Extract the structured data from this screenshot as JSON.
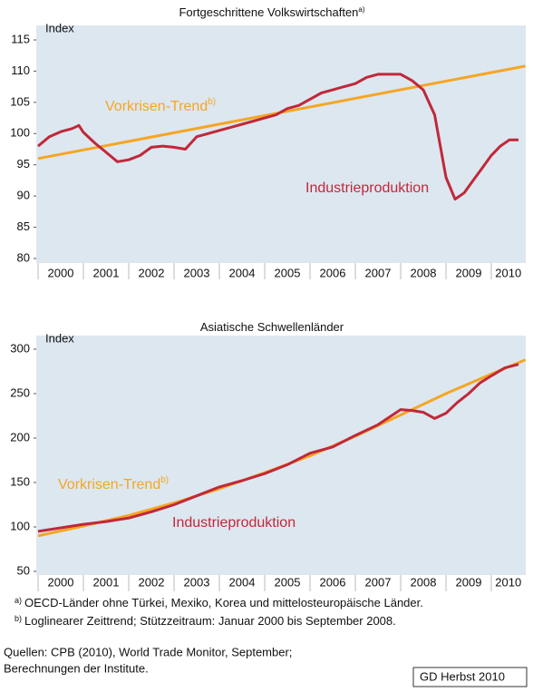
{
  "chart_data": [
    {
      "type": "line",
      "title": "Fortgeschrittene Volkswirtschaften",
      "title_note": "a)",
      "ylabel": "Index",
      "x_categories": [
        "2000",
        "2001",
        "2002",
        "2003",
        "2004",
        "2005",
        "2006",
        "2007",
        "2008",
        "2009",
        "2010"
      ],
      "xlim": [
        2000,
        2010.75
      ],
      "ylim": [
        80,
        115
      ],
      "yticks": [
        80,
        85,
        90,
        95,
        100,
        105,
        110,
        115
      ],
      "series": [
        {
          "name": "Vorkrisen-Trend",
          "name_note": "b)",
          "color": "#f5a623",
          "x": [
            2000,
            2010.75
          ],
          "values": [
            96,
            110.8
          ]
        },
        {
          "name": "Industrieproduktion",
          "color": "#c0283a",
          "x": [
            2000,
            2000.25,
            2000.5,
            2000.75,
            2000.9,
            2001,
            2001.25,
            2001.5,
            2001.75,
            2002,
            2002.25,
            2002.5,
            2002.75,
            2003,
            2003.25,
            2003.5,
            2003.75,
            2004,
            2004.25,
            2004.5,
            2004.75,
            2005,
            2005.25,
            2005.5,
            2005.75,
            2006,
            2006.25,
            2006.5,
            2006.75,
            2007,
            2007.25,
            2007.5,
            2007.75,
            2008,
            2008.25,
            2008.5,
            2008.75,
            2009,
            2009.2,
            2009.4,
            2009.6,
            2009.8,
            2010,
            2010.2,
            2010.4,
            2010.6
          ],
          "values": [
            98,
            99.5,
            100.3,
            100.8,
            101.3,
            100.2,
            98.5,
            97,
            95.5,
            95.8,
            96.5,
            97.8,
            98,
            97.8,
            97.5,
            99.5,
            100,
            100.5,
            101,
            101.5,
            102,
            102.5,
            103,
            104,
            104.5,
            105.5,
            106.5,
            107,
            107.5,
            108,
            109,
            109.5,
            109.5,
            109.5,
            108.5,
            107,
            103,
            93,
            89.5,
            90.5,
            92.5,
            94.5,
            96.5,
            98,
            99,
            99
          ]
        }
      ]
    },
    {
      "type": "line",
      "title": "Asiatische Schwellenländer",
      "ylabel": "Index",
      "x_categories": [
        "2000",
        "2001",
        "2002",
        "2003",
        "2004",
        "2005",
        "2006",
        "2007",
        "2008",
        "2009",
        "2010"
      ],
      "xlim": [
        2000,
        2010.75
      ],
      "ylim": [
        50,
        300
      ],
      "yticks": [
        50,
        100,
        150,
        200,
        250,
        300
      ],
      "series": [
        {
          "name": "Vorkrisen-Trend",
          "name_note": "b)",
          "color": "#f5a623",
          "x": [
            2000,
            2001,
            2002,
            2003,
            2004,
            2005,
            2006,
            2007,
            2008,
            2009,
            2010,
            2010.75
          ],
          "values": [
            90,
            101,
            113,
            127,
            143,
            161,
            180,
            202,
            226,
            250,
            272,
            288
          ]
        },
        {
          "name": "Industrieproduktion",
          "color": "#c0283a",
          "x": [
            2000,
            2000.5,
            2001,
            2001.5,
            2002,
            2002.5,
            2003,
            2003.5,
            2004,
            2004.5,
            2005,
            2005.5,
            2006,
            2006.5,
            2007,
            2007.5,
            2008,
            2008.25,
            2008.5,
            2008.75,
            2009,
            2009.25,
            2009.5,
            2009.75,
            2010,
            2010.3,
            2010.6
          ],
          "values": [
            95,
            99,
            103,
            106,
            110,
            117,
            125,
            135,
            145,
            152,
            160,
            170,
            183,
            190,
            203,
            215,
            232,
            231,
            229,
            222,
            228,
            240,
            250,
            262,
            270,
            279,
            283
          ]
        }
      ]
    }
  ],
  "notes": [
    {
      "mark": "a)",
      "text": "OECD-Länder ohne Türkei, Mexiko, Korea und mittelosteuropäische Länder."
    },
    {
      "mark": "b)",
      "text": "Loglinearer Zeittrend; Stützzeitraum: Januar 2000 bis September 2008."
    }
  ],
  "sources": [
    "Quellen: CPB (2010), World Trade Monitor, September;",
    "Berechnungen der Institute."
  ],
  "badge": "GD Herbst 2010"
}
